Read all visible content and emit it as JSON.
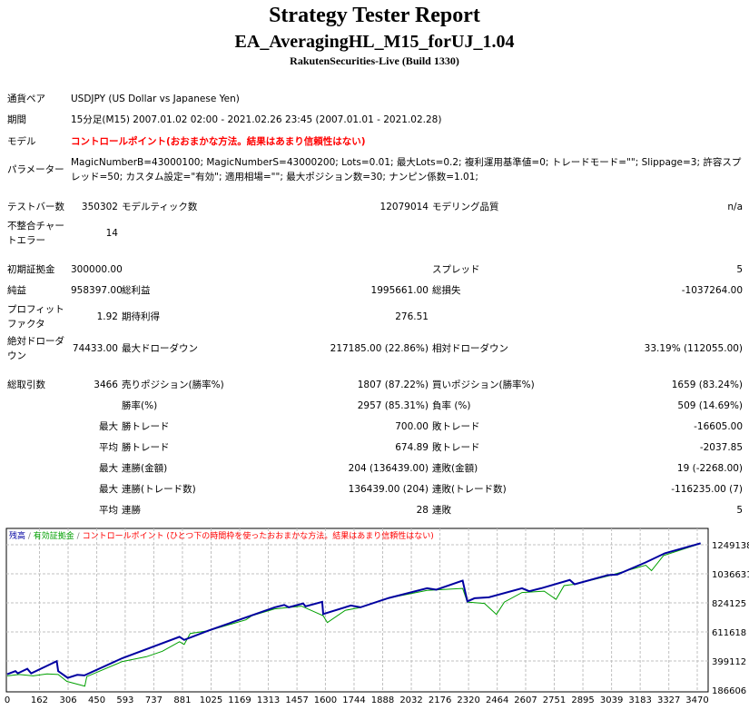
{
  "header": {
    "title": "Strategy Tester Report",
    "ea_name": "EA_AveragingHL_M15_forUJ_1.04",
    "server": "RakutenSecurities-Live (Build 1330)"
  },
  "info": {
    "symbol_label": "通貨ペア",
    "symbol": "USDJPY (US Dollar vs Japanese Yen)",
    "period_label": "期間",
    "period": "15分足(M15) 2007.01.02 02:00 - 2021.02.26 23:45 (2007.01.01 - 2021.02.28)",
    "model_label": "モデル",
    "model": "コントロールポイント(おおまかな方法。結果はあまり信頼性はない)",
    "params_label": "パラメーター",
    "params": "MagicNumberB=43000100; MagicNumberS=43000200; Lots=0.01; 最大Lots=0.2; 複利運用基準値=0; トレードモード=\"\"; Slippage=3; 許容スプレッド=50; カスタム設定=\"有効\"; 適用相場=\"\"; 最大ポジション数=30; ナンピン係数=1.01;"
  },
  "stats": {
    "bars_label": "テストバー数",
    "bars": "350302",
    "ticks_label": "モデルティック数",
    "ticks": "12079014",
    "quality_label": "モデリング品質",
    "quality": "n/a",
    "mismatch_label": "不整合チャートエラー",
    "mismatch": "14",
    "deposit_label": "初期証拠金",
    "deposit": "300000.00",
    "spread_label": "スプレッド",
    "spread": "5",
    "net_label": "純益",
    "net": "958397.00",
    "gross_profit_label": "総利益",
    "gross_profit": "1995661.00",
    "gross_loss_label": "総損失",
    "gross_loss": "-1037264.00",
    "pf_label": "プロフィットファクタ",
    "pf": "1.92",
    "expected_label": "期待利得",
    "expected": "276.51",
    "abs_dd_label": "絶対ドローダウン",
    "abs_dd": "74433.00",
    "max_dd_label": "最大ドローダウン",
    "max_dd": "217185.00 (22.86%)",
    "rel_dd_label": "相対ドローダウン",
    "rel_dd": "33.19% (112055.00)",
    "total_label": "総取引数",
    "total": "3466",
    "short_label": "売りポジション(勝率%)",
    "short": "1807 (87.22%)",
    "long_label": "買いポジション(勝率%)",
    "long": "1659 (83.24%)",
    "win_label": "勝率(%)",
    "win": "2957 (85.31%)",
    "loss_label": "負率 (%)",
    "loss": "509 (14.69%)",
    "max_prefix": "最大",
    "avg_prefix": "平均",
    "largest_win_label": "勝トレード",
    "largest_win": "700.00",
    "largest_loss_label": "敗トレード",
    "largest_loss": "-16605.00",
    "avg_win_label": "勝トレード",
    "avg_win": "674.89",
    "avg_loss_label": "敗トレード",
    "avg_loss": "-2037.85",
    "cons_win_money_label": "連勝(金額)",
    "cons_win_money": "204 (136439.00)",
    "cons_loss_money_label": "連敗(金額)",
    "cons_loss_money": "19 (-2268.00)",
    "cons_win_count_label": "連勝(トレード数)",
    "cons_win_count": "136439.00 (204)",
    "cons_loss_count_label": "連敗(トレード数)",
    "cons_loss_count": "-116235.00 (7)",
    "avg_cons_win_label": "連勝",
    "avg_cons_win": "28",
    "avg_cons_loss_label": "連敗",
    "avg_cons_loss": "5"
  },
  "chart_data": {
    "type": "line",
    "legend": [
      {
        "text": "残高",
        "color": "#0000a0"
      },
      {
        "text": "有効証拠金",
        "color": "#00a000"
      },
      {
        "text": "コントロールポイント (ひとつ下の時間枠を使ったおおまかな方法。結果はあまり信頼性はない)",
        "color": "#ff0000"
      }
    ],
    "separator": " / ",
    "x_ticks": [
      "0",
      "162",
      "306",
      "450",
      "593",
      "737",
      "881",
      "1025",
      "1169",
      "1313",
      "1457",
      "1600",
      "1744",
      "1888",
      "2032",
      "2176",
      "2320",
      "2464",
      "2607",
      "2751",
      "2895",
      "3039",
      "3183",
      "3327",
      "3470"
    ],
    "y_ticks": [
      "1249138",
      "1036631",
      "824125",
      "611618",
      "399112",
      "186606"
    ],
    "xlim": [
      0,
      3490
    ],
    "ylim": [
      186606,
      1270000
    ],
    "grid": true,
    "series": [
      {
        "name": "残高",
        "color": "#0000a0",
        "points": [
          [
            0,
            302202
          ],
          [
            41,
            324432
          ],
          [
            53,
            308871
          ],
          [
            101,
            342216
          ],
          [
            120,
            308871
          ],
          [
            249,
            397791
          ],
          [
            256,
            324432
          ],
          [
            304,
            275526
          ],
          [
            352,
            297756
          ],
          [
            388,
            293310
          ],
          [
            579,
            420021
          ],
          [
            866,
            575631
          ],
          [
            890,
            553401
          ],
          [
            1010,
            620091
          ],
          [
            1345,
            791262
          ],
          [
            1393,
            809046
          ],
          [
            1416,
            791262
          ],
          [
            1488,
            820171
          ],
          [
            1500,
            797931
          ],
          [
            1584,
            831276
          ],
          [
            1589,
            742356
          ],
          [
            1728,
            804600
          ],
          [
            1776,
            791262
          ],
          [
            1919,
            860175
          ],
          [
            2111,
            931311
          ],
          [
            2158,
            920196
          ],
          [
            2290,
            986886
          ],
          [
            2314,
            835722
          ],
          [
            2350,
            857952
          ],
          [
            2422,
            864621
          ],
          [
            2589,
            931311
          ],
          [
            2625,
            909081
          ],
          [
            2685,
            931311
          ],
          [
            2829,
            991332
          ],
          [
            2853,
            960210
          ],
          [
            3020,
            1026932
          ],
          [
            3068,
            1031346
          ],
          [
            3211,
            1120266
          ],
          [
            3307,
            1186956
          ],
          [
            3487,
            1260000
          ]
        ]
      },
      {
        "name": "有効証拠金",
        "color": "#00a000",
        "points": [
          [
            0,
            290000
          ],
          [
            60,
            300000
          ],
          [
            130,
            290000
          ],
          [
            200,
            305000
          ],
          [
            256,
            300000
          ],
          [
            300,
            250000
          ],
          [
            390,
            215000
          ],
          [
            400,
            285000
          ],
          [
            579,
            395000
          ],
          [
            700,
            430000
          ],
          [
            780,
            470000
          ],
          [
            866,
            540000
          ],
          [
            890,
            520000
          ],
          [
            920,
            600000
          ],
          [
            1010,
            620000
          ],
          [
            1200,
            700000
          ],
          [
            1230,
            730000
          ],
          [
            1345,
            780000
          ],
          [
            1480,
            800000
          ],
          [
            1589,
            730000
          ],
          [
            1610,
            680000
          ],
          [
            1700,
            770000
          ],
          [
            1776,
            790000
          ],
          [
            1919,
            860000
          ],
          [
            2111,
            915000
          ],
          [
            2290,
            930000
          ],
          [
            2314,
            830000
          ],
          [
            2400,
            820000
          ],
          [
            2460,
            740000
          ],
          [
            2500,
            830000
          ],
          [
            2589,
            900000
          ],
          [
            2700,
            910000
          ],
          [
            2760,
            850000
          ],
          [
            2800,
            950000
          ],
          [
            2853,
            960000
          ],
          [
            3020,
            1020000
          ],
          [
            3211,
            1100000
          ],
          [
            3240,
            1060000
          ],
          [
            3300,
            1170000
          ],
          [
            3487,
            1258000
          ]
        ]
      }
    ]
  }
}
